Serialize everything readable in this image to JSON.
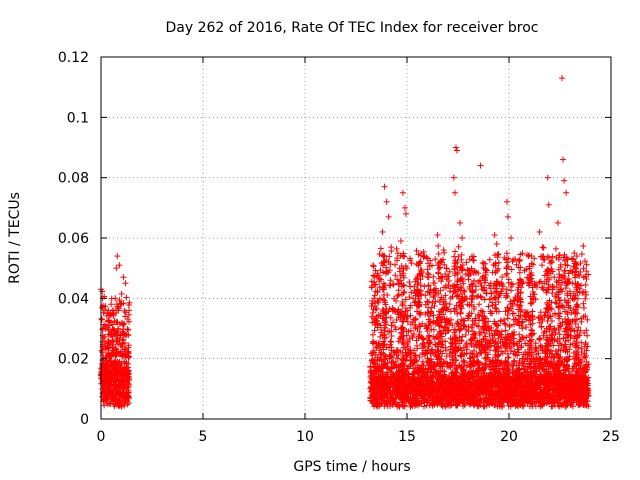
{
  "chart_data": {
    "type": "scatter",
    "title": "Day 262 of 2016, Rate Of TEC Index for receiver broc",
    "xlabel": "GPS time / hours",
    "ylabel": "ROTI / TECUs",
    "xlim": [
      0,
      25
    ],
    "ylim": [
      0,
      0.12
    ],
    "xticks": [
      0,
      5,
      10,
      15,
      20,
      25
    ],
    "yticks": [
      0,
      0.02,
      0.04,
      0.06,
      0.08,
      0.1,
      0.12
    ],
    "xtick_labels": [
      "0",
      "5",
      "10",
      "15",
      "20",
      "25"
    ],
    "ytick_labels": [
      "0",
      "0.02",
      "0.04",
      "0.06",
      "0.08",
      "0.1",
      "0.12"
    ],
    "grid": true,
    "marker": "+",
    "color": "#ff0000",
    "series": [
      {
        "name": "ROTI",
        "outliers": [
          [
            0.0,
            0.043
          ],
          [
            0.8,
            0.054
          ],
          [
            0.75,
            0.05
          ],
          [
            0.9,
            0.051
          ],
          [
            1.1,
            0.047
          ],
          [
            1.2,
            0.045
          ],
          [
            0.7,
            0.04
          ],
          [
            0.85,
            0.036
          ],
          [
            0.4,
            0.031
          ],
          [
            0.5,
            0.029
          ],
          [
            13.9,
            0.077
          ],
          [
            14.0,
            0.072
          ],
          [
            14.1,
            0.067
          ],
          [
            13.8,
            0.062
          ],
          [
            13.85,
            0.052
          ],
          [
            14.8,
            0.075
          ],
          [
            14.9,
            0.07
          ],
          [
            14.95,
            0.068
          ],
          [
            14.7,
            0.059
          ],
          [
            15.0,
            0.05
          ],
          [
            16.5,
            0.061
          ],
          [
            16.7,
            0.052
          ],
          [
            17.4,
            0.09
          ],
          [
            17.45,
            0.089
          ],
          [
            17.3,
            0.08
          ],
          [
            17.35,
            0.075
          ],
          [
            17.6,
            0.065
          ],
          [
            17.7,
            0.06
          ],
          [
            18.6,
            0.084
          ],
          [
            19.3,
            0.061
          ],
          [
            19.4,
            0.058
          ],
          [
            19.9,
            0.072
          ],
          [
            19.95,
            0.067
          ],
          [
            20.1,
            0.06
          ],
          [
            20.3,
            0.053
          ],
          [
            21.5,
            0.062
          ],
          [
            21.9,
            0.08
          ],
          [
            21.95,
            0.071
          ],
          [
            22.1,
            0.052
          ],
          [
            22.4,
            0.065
          ],
          [
            22.6,
            0.113
          ],
          [
            22.65,
            0.086
          ],
          [
            22.7,
            0.079
          ],
          [
            22.8,
            0.075
          ],
          [
            23.2,
            0.055
          ],
          [
            23.3,
            0.05
          ],
          [
            16.1,
            0.042
          ],
          [
            15.3,
            0.04
          ],
          [
            18.1,
            0.048
          ],
          [
            21.0,
            0.045
          ]
        ]
      }
    ]
  }
}
